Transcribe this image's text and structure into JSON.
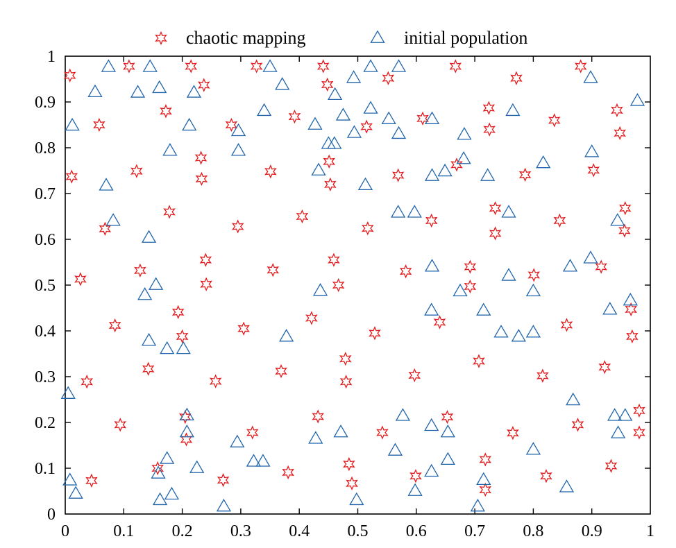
{
  "chart_data": {
    "type": "scatter",
    "title": "",
    "xlabel": "",
    "ylabel": "",
    "xlim": [
      0,
      1
    ],
    "ylim": [
      0,
      1
    ],
    "grid": false,
    "legend": "top",
    "xticks": [
      "0",
      "0.1",
      "0.2",
      "0.3",
      "0.4",
      "0.5",
      "0.6",
      "0.7",
      "0.8",
      "0.9",
      "1"
    ],
    "yticks": [
      "0",
      "0.1",
      "0.2",
      "0.3",
      "0.4",
      "0.5",
      "0.6",
      "0.7",
      "0.8",
      "0.9",
      "1"
    ],
    "series": [
      {
        "name": "chaotic mapping",
        "marker": "star",
        "color": "#e31a1c",
        "points": [
          [
            0.008,
            0.958
          ],
          [
            0.011,
            0.737
          ],
          [
            0.026,
            0.513
          ],
          [
            0.037,
            0.289
          ],
          [
            0.045,
            0.073
          ],
          [
            0.058,
            0.85
          ],
          [
            0.068,
            0.623
          ],
          [
            0.085,
            0.412
          ],
          [
            0.094,
            0.195
          ],
          [
            0.109,
            0.978
          ],
          [
            0.122,
            0.749
          ],
          [
            0.128,
            0.532
          ],
          [
            0.142,
            0.317
          ],
          [
            0.158,
            0.1
          ],
          [
            0.172,
            0.88
          ],
          [
            0.178,
            0.66
          ],
          [
            0.193,
            0.441
          ],
          [
            0.2,
            0.388
          ],
          [
            0.205,
            0.212
          ],
          [
            0.207,
            0.163
          ],
          [
            0.215,
            0.978
          ],
          [
            0.232,
            0.778
          ],
          [
            0.233,
            0.732
          ],
          [
            0.237,
            0.937
          ],
          [
            0.24,
            0.555
          ],
          [
            0.241,
            0.502
          ],
          [
            0.257,
            0.29
          ],
          [
            0.27,
            0.074
          ],
          [
            0.284,
            0.85
          ],
          [
            0.295,
            0.628
          ],
          [
            0.305,
            0.405
          ],
          [
            0.32,
            0.178
          ],
          [
            0.327,
            0.978
          ],
          [
            0.351,
            0.748
          ],
          [
            0.355,
            0.533
          ],
          [
            0.369,
            0.312
          ],
          [
            0.381,
            0.091
          ],
          [
            0.392,
            0.868
          ],
          [
            0.405,
            0.65
          ],
          [
            0.421,
            0.428
          ],
          [
            0.432,
            0.213
          ],
          [
            0.441,
            0.978
          ],
          [
            0.448,
            0.938
          ],
          [
            0.451,
            0.77
          ],
          [
            0.453,
            0.72
          ],
          [
            0.459,
            0.555
          ],
          [
            0.467,
            0.5
          ],
          [
            0.479,
            0.339
          ],
          [
            0.48,
            0.289
          ],
          [
            0.485,
            0.109
          ],
          [
            0.49,
            0.067
          ],
          [
            0.515,
            0.846
          ],
          [
            0.517,
            0.624
          ],
          [
            0.529,
            0.395
          ],
          [
            0.542,
            0.178
          ],
          [
            0.552,
            0.952
          ],
          [
            0.569,
            0.74
          ],
          [
            0.582,
            0.53
          ],
          [
            0.597,
            0.303
          ],
          [
            0.599,
            0.083
          ],
          [
            0.611,
            0.864
          ],
          [
            0.626,
            0.641
          ],
          [
            0.64,
            0.419
          ],
          [
            0.653,
            0.212
          ],
          [
            0.667,
            0.978
          ],
          [
            0.669,
            0.763
          ],
          [
            0.692,
            0.54
          ],
          [
            0.692,
            0.497
          ],
          [
            0.707,
            0.334
          ],
          [
            0.718,
            0.119
          ],
          [
            0.718,
            0.053
          ],
          [
            0.724,
            0.887
          ],
          [
            0.725,
            0.84
          ],
          [
            0.735,
            0.668
          ],
          [
            0.735,
            0.613
          ],
          [
            0.765,
            0.177
          ],
          [
            0.771,
            0.952
          ],
          [
            0.786,
            0.741
          ],
          [
            0.801,
            0.522
          ],
          [
            0.816,
            0.302
          ],
          [
            0.822,
            0.083
          ],
          [
            0.836,
            0.86
          ],
          [
            0.845,
            0.641
          ],
          [
            0.857,
            0.413
          ],
          [
            0.876,
            0.195
          ],
          [
            0.881,
            0.978
          ],
          [
            0.903,
            0.751
          ],
          [
            0.916,
            0.54
          ],
          [
            0.922,
            0.321
          ],
          [
            0.933,
            0.105
          ],
          [
            0.943,
            0.882
          ],
          [
            0.948,
            0.832
          ],
          [
            0.957,
            0.668
          ],
          [
            0.956,
            0.619
          ],
          [
            0.967,
            0.447
          ],
          [
            0.969,
            0.388
          ],
          [
            0.981,
            0.226
          ],
          [
            0.981,
            0.178
          ]
        ]
      },
      {
        "name": "initial population",
        "marker": "triangle",
        "color": "#2166ac",
        "points": [
          [
            0.005,
            0.262
          ],
          [
            0.008,
            0.073
          ],
          [
            0.012,
            0.848
          ],
          [
            0.018,
            0.044
          ],
          [
            0.051,
            0.921
          ],
          [
            0.07,
            0.717
          ],
          [
            0.074,
            0.976
          ],
          [
            0.082,
            0.64
          ],
          [
            0.124,
            0.92
          ],
          [
            0.136,
            0.478
          ],
          [
            0.143,
            0.378
          ],
          [
            0.143,
            0.603
          ],
          [
            0.145,
            0.976
          ],
          [
            0.155,
            0.5
          ],
          [
            0.159,
            0.088
          ],
          [
            0.161,
            0.93
          ],
          [
            0.162,
            0.03
          ],
          [
            0.174,
            0.12
          ],
          [
            0.174,
            0.36
          ],
          [
            0.179,
            0.793
          ],
          [
            0.182,
            0.042
          ],
          [
            0.202,
            0.36
          ],
          [
            0.208,
            0.215
          ],
          [
            0.208,
            0.178
          ],
          [
            0.212,
            0.848
          ],
          [
            0.22,
            0.92
          ],
          [
            0.225,
            0.1
          ],
          [
            0.271,
            0.016
          ],
          [
            0.294,
            0.156
          ],
          [
            0.296,
            0.836
          ],
          [
            0.296,
            0.793
          ],
          [
            0.322,
            0.114
          ],
          [
            0.338,
            0.114
          ],
          [
            0.34,
            0.88
          ],
          [
            0.35,
            0.976
          ],
          [
            0.371,
            0.937
          ],
          [
            0.378,
            0.387
          ],
          [
            0.428,
            0.164
          ],
          [
            0.427,
            0.85
          ],
          [
            0.433,
            0.75
          ],
          [
            0.436,
            0.487
          ],
          [
            0.45,
            0.808
          ],
          [
            0.46,
            0.808
          ],
          [
            0.461,
            0.915
          ],
          [
            0.471,
            0.178
          ],
          [
            0.475,
            0.87
          ],
          [
            0.493,
            0.952
          ],
          [
            0.494,
            0.832
          ],
          [
            0.498,
            0.03
          ],
          [
            0.513,
            0.718
          ],
          [
            0.522,
            0.976
          ],
          [
            0.522,
            0.885
          ],
          [
            0.553,
            0.862
          ],
          [
            0.564,
            0.138
          ],
          [
            0.569,
            0.658
          ],
          [
            0.57,
            0.976
          ],
          [
            0.57,
            0.83
          ],
          [
            0.577,
            0.214
          ],
          [
            0.598,
            0.05
          ],
          [
            0.597,
            0.658
          ],
          [
            0.626,
            0.092
          ],
          [
            0.626,
            0.192
          ],
          [
            0.626,
            0.444
          ],
          [
            0.627,
            0.54
          ],
          [
            0.627,
            0.738
          ],
          [
            0.627,
            0.862
          ],
          [
            0.649,
            0.748
          ],
          [
            0.654,
            0.118
          ],
          [
            0.654,
            0.178
          ],
          [
            0.675,
            0.486
          ],
          [
            0.681,
            0.775
          ],
          [
            0.682,
            0.828
          ],
          [
            0.705,
            0.016
          ],
          [
            0.715,
            0.074
          ],
          [
            0.715,
            0.444
          ],
          [
            0.722,
            0.738
          ],
          [
            0.745,
            0.396
          ],
          [
            0.758,
            0.52
          ],
          [
            0.758,
            0.658
          ],
          [
            0.765,
            0.88
          ],
          [
            0.775,
            0.387
          ],
          [
            0.8,
            0.14
          ],
          [
            0.8,
            0.396
          ],
          [
            0.8,
            0.486
          ],
          [
            0.817,
            0.766
          ],
          [
            0.857,
            0.058
          ],
          [
            0.863,
            0.54
          ],
          [
            0.868,
            0.248
          ],
          [
            0.898,
            0.558
          ],
          [
            0.898,
            0.952
          ],
          [
            0.9,
            0.79
          ],
          [
            0.931,
            0.446
          ],
          [
            0.939,
            0.214
          ],
          [
            0.944,
            0.64
          ],
          [
            0.945,
            0.176
          ],
          [
            0.957,
            0.214
          ],
          [
            0.966,
            0.466
          ],
          [
            0.978,
            0.902
          ]
        ]
      }
    ]
  }
}
